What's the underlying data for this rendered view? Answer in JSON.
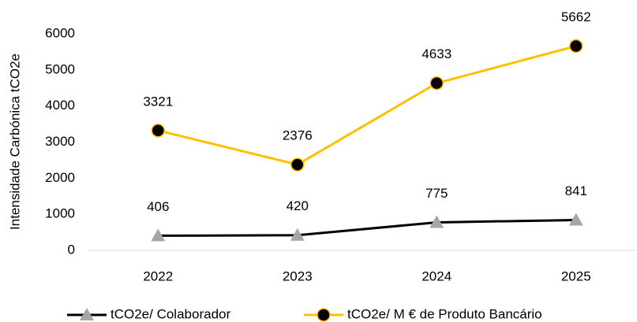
{
  "chart_data": {
    "type": "line",
    "y_label": "Intensidade Carbónica tCO2e",
    "categories": [
      "2022",
      "2023",
      "2024",
      "2025"
    ],
    "series": [
      {
        "name": "tCO2e/ Colaborador",
        "color": "#000000",
        "marker": "triangle",
        "marker_color": "#a6a6a6",
        "values": [
          406,
          420,
          775,
          841
        ]
      },
      {
        "name": "tCO2e/ M € de Produto Bancário",
        "color": "#ffc000",
        "marker": "circle",
        "marker_color": "#000000",
        "values": [
          3321,
          2376,
          4633,
          5662
        ]
      }
    ],
    "ylim": [
      0,
      6000
    ],
    "yticks": [
      0,
      1000,
      2000,
      3000,
      4000,
      5000,
      6000
    ],
    "grid": false,
    "legend": "bottom"
  }
}
